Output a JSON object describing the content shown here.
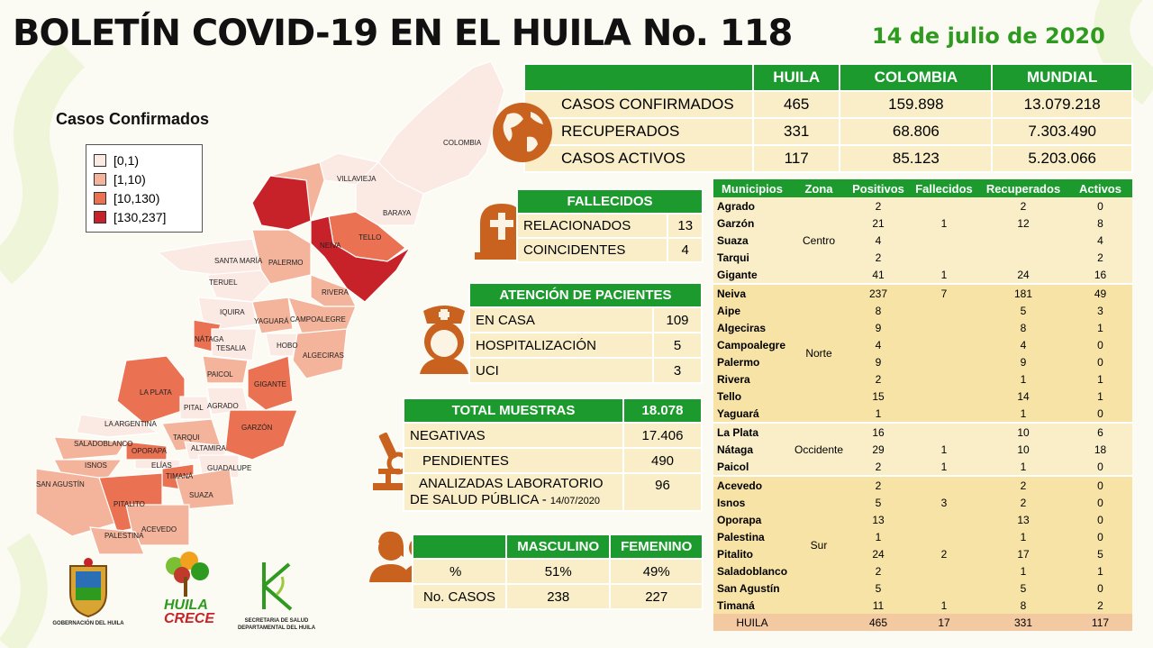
{
  "header": {
    "title": "BOLETÍN COVID-19 EN EL HUILA No. 118",
    "date": "14 de julio de 2020"
  },
  "map": {
    "title": "Casos Confirmados",
    "legend": [
      {
        "label": "[0,1)",
        "color": "#fbe9e4"
      },
      {
        "label": "[1,10)",
        "color": "#f4b49b"
      },
      {
        "label": "[10,130)",
        "color": "#ea7152"
      },
      {
        "label": "[130,237]",
        "color": "#c7222a"
      }
    ],
    "labels": {
      "colombia": "COLOMBIA",
      "villavieja": "VILLAVIEJA",
      "baraya": "BARAYA",
      "tello": "TELLO",
      "neiva": "NEIVA",
      "santa_maria": "SANTA MARÍA",
      "palermo": "PALERMO",
      "teruel": "TERUEL",
      "rivera": "RIVERA",
      "iquira": "IQUIRA",
      "yaguara": "YAGUARÁ",
      "campoalegre": "CAMPOALEGRE",
      "nataga": "NÁTAGA",
      "tesalia": "TESALIA",
      "hobo": "HOBO",
      "algeciras": "ALGECIRAS",
      "paicol": "PAICOL",
      "la_plata": "LA PLATA",
      "gigante": "GIGANTE",
      "agrado": "AGRADO",
      "pital": "PITAL",
      "la_argentina": "LA ARGENTINA",
      "garzon": "GARZÓN",
      "tarqui": "TARQUI",
      "saladoblanco": "SALADOBLANCO",
      "oporapa": "OPORAPA",
      "altamira": "ALTAMIRA",
      "isnos": "ISNOS",
      "elias": "ELÍAS",
      "guadalupe": "GUADALUPE",
      "san_agustin": "SAN AGUSTÍN",
      "timana": "TIMANÁ",
      "suaza": "SUAZA",
      "pitalito": "PITALITO",
      "acevedo": "ACEVEDO",
      "palestina": "PALESTINA"
    }
  },
  "summary": {
    "headers": [
      "HUILA",
      "COLOMBIA",
      "MUNDIAL"
    ],
    "rows": [
      {
        "label": "CASOS CONFIRMADOS",
        "huila": "465",
        "colombia": "159.898",
        "mundial": "13.079.218"
      },
      {
        "label": "RECUPERADOS",
        "huila": "331",
        "colombia": "68.806",
        "mundial": "7.303.490"
      },
      {
        "label": "CASOS ACTIVOS",
        "huila": "117",
        "colombia": "85.123",
        "mundial": "5.203.066"
      }
    ]
  },
  "deaths": {
    "title": "FALLECIDOS",
    "rows": [
      {
        "label": "RELACIONADOS",
        "value": "13"
      },
      {
        "label": "COINCIDENTES",
        "value": "4"
      }
    ]
  },
  "patients": {
    "title": "ATENCIÓN  DE PACIENTES",
    "rows": [
      {
        "label": "EN CASA",
        "value": "109"
      },
      {
        "label": "HOSPITALIZACIÓN",
        "value": "5"
      },
      {
        "label": "UCI",
        "value": "3"
      }
    ]
  },
  "samples": {
    "title": "TOTAL MUESTRAS",
    "total": "18.078",
    "rows": [
      {
        "label": "NEGATIVAS",
        "value": "17.406"
      },
      {
        "label": "PENDIENTES",
        "value": "490"
      }
    ],
    "lab_label": "ANALIZADAS  LABORATORIO",
    "lab_label2": "DE SALUD PÚBLICA - ",
    "lab_date": "14/07/2020",
    "lab_value": "96"
  },
  "gender": {
    "headers": [
      "MASCULINO",
      "FEMENINO"
    ],
    "rows": [
      {
        "label": "%",
        "m": "51%",
        "f": "49%"
      },
      {
        "label": "No. CASOS",
        "m": "238",
        "f": "227"
      }
    ]
  },
  "municipalities": {
    "headers": [
      "Municipios",
      "Zona",
      "Positivos",
      "Fallecidos",
      "Recuperados",
      "Activos"
    ],
    "zones": {
      "centro": "Centro",
      "norte": "Norte",
      "occidente": "Occidente",
      "sur": "Sur"
    },
    "centro": [
      [
        "Agrado",
        "2",
        "",
        "2",
        "0"
      ],
      [
        "Garzón",
        "21",
        "1",
        "12",
        "8"
      ],
      [
        "Suaza",
        "4",
        "",
        "",
        "4"
      ],
      [
        "Tarqui",
        "2",
        "",
        "",
        "2"
      ],
      [
        "Gigante",
        "41",
        "1",
        "24",
        "16"
      ]
    ],
    "norte": [
      [
        "Neiva",
        "237",
        "7",
        "181",
        "49"
      ],
      [
        "Aipe",
        "8",
        "",
        "5",
        "3"
      ],
      [
        "Algeciras",
        "9",
        "",
        "8",
        "1"
      ],
      [
        "Campoalegre",
        "4",
        "",
        "4",
        "0"
      ],
      [
        "Palermo",
        "9",
        "",
        "9",
        "0"
      ],
      [
        "Rivera",
        "2",
        "",
        "1",
        "1"
      ],
      [
        "Tello",
        "15",
        "",
        "14",
        "1"
      ],
      [
        "Yaguará",
        "1",
        "",
        "1",
        "0"
      ]
    ],
    "occidente": [
      [
        "La Plata",
        "16",
        "",
        "10",
        "6"
      ],
      [
        "Nátaga",
        "29",
        "1",
        "10",
        "18"
      ],
      [
        "Paicol",
        "2",
        "1",
        "1",
        "0"
      ]
    ],
    "sur": [
      [
        "Acevedo",
        "2",
        "",
        "2",
        "0"
      ],
      [
        "Isnos",
        "5",
        "3",
        "2",
        "0"
      ],
      [
        "Oporapa",
        "13",
        "",
        "13",
        "0"
      ],
      [
        "Palestina",
        "1",
        "",
        "1",
        "0"
      ],
      [
        "Pitalito",
        "24",
        "2",
        "17",
        "5"
      ],
      [
        "Saladoblanco",
        "2",
        "",
        "1",
        "1"
      ],
      [
        "San Agustín",
        "5",
        "",
        "5",
        "0"
      ],
      [
        "Timaná",
        "11",
        "1",
        "8",
        "2"
      ]
    ],
    "total": [
      "HUILA",
      "465",
      "17",
      "331",
      "117"
    ]
  },
  "logos": {
    "gobernacion": "GOBERNACIÓN DEL HUILA",
    "huila_crece_1": "HUILA",
    "huila_crece_2": "CRECE",
    "secretaria_1": "SECRETARIA DE SALUD",
    "secretaria_2": "DEPARTAMENTAL DEL HUILA"
  },
  "colors": {
    "green": "#1c9a2e",
    "cream": "#f9eec8",
    "brown": "#c9621f",
    "total_row": "#f3c9a2"
  }
}
